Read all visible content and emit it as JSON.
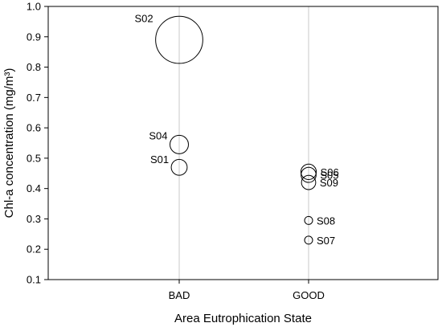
{
  "chart_data": {
    "type": "scatter",
    "subtype": "bubble",
    "title": "",
    "xlabel": "Area Eutrophication State",
    "ylabel": "Chl-a concentration (mg/m³)",
    "categories": [
      "BAD",
      "GOOD"
    ],
    "ylim": [
      0.1,
      1.0
    ],
    "yticks": [
      "0.1",
      "0.2",
      "0.3",
      "0.4",
      "0.5",
      "0.6",
      "0.7",
      "0.8",
      "0.9",
      "1.0"
    ],
    "grid": "vertical",
    "legend": "none",
    "points": [
      {
        "label": "S02",
        "category": "BAD",
        "y": 0.89,
        "size": 0.89
      },
      {
        "label": "S04",
        "category": "BAD",
        "y": 0.545,
        "size": 0.545
      },
      {
        "label": "S01",
        "category": "BAD",
        "y": 0.47,
        "size": 0.47
      },
      {
        "label": "S06",
        "category": "GOOD",
        "y": 0.455,
        "size": 0.455
      },
      {
        "label": "S05",
        "category": "GOOD",
        "y": 0.445,
        "size": 0.445
      },
      {
        "label": "S09",
        "category": "GOOD",
        "y": 0.42,
        "size": 0.42
      },
      {
        "label": "S08",
        "category": "GOOD",
        "y": 0.295,
        "size": 0.295
      },
      {
        "label": "S07",
        "category": "GOOD",
        "y": 0.23,
        "size": 0.23
      }
    ],
    "colors": {
      "marker_fill": "#ffffff",
      "marker_stroke": "#000000",
      "grid": "#c8c8c8",
      "axis": "#000000"
    }
  }
}
